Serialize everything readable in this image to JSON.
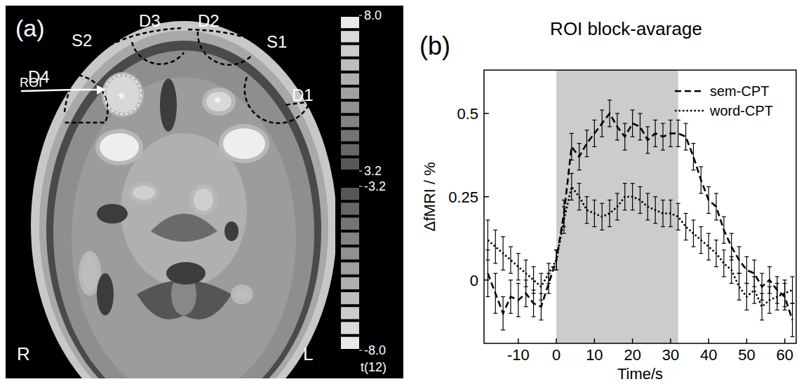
{
  "chart_data": [
    {
      "type": "image",
      "panel": "(a)",
      "labels": [
        "S2",
        "D3",
        "D2",
        "S1",
        "D4",
        "D1",
        "ROI",
        "*",
        "*",
        "R",
        "L"
      ],
      "colorbar": {
        "title": "t(12)",
        "ranges": [
          [
            3.2,
            8.0
          ],
          [
            -8.0,
            -3.2
          ]
        ],
        "ticks": [
          {
            "value": 8.0,
            "label": "8.0"
          },
          {
            "value": 3.2,
            "label": "3.2"
          },
          {
            "value": -3.2,
            "label": "-3.2"
          },
          {
            "value": -8.0,
            "label": "-8.0"
          }
        ]
      }
    },
    {
      "type": "line",
      "panel": "(b)",
      "title": "ROI block-avarage",
      "x_label": "Time/s",
      "y_label": "ΔfMRI / %",
      "xlim": [
        -19,
        63
      ],
      "ylim": [
        -0.19,
        0.63
      ],
      "xticks": [
        -10,
        0,
        10,
        20,
        30,
        40,
        50,
        60
      ],
      "yticks": [
        0,
        0.25,
        0.5
      ],
      "grid": false,
      "legend": "upper right",
      "shaded_x": [
        0,
        32
      ],
      "x": [
        -18,
        -16,
        -14,
        -12,
        -10,
        -8,
        -6,
        -4,
        -2,
        0,
        2,
        4,
        6,
        8,
        10,
        12,
        14,
        16,
        18,
        20,
        22,
        24,
        26,
        28,
        30,
        32,
        34,
        36,
        38,
        40,
        42,
        44,
        46,
        48,
        50,
        52,
        54,
        56,
        58,
        60,
        62
      ],
      "series": [
        {
          "name": "sem-CPT",
          "color": "#000000",
          "line_style": "dashed",
          "values": [
            0.02,
            -0.04,
            -0.1,
            -0.05,
            -0.06,
            -0.04,
            -0.07,
            -0.08,
            -0.01,
            0.06,
            0.2,
            0.4,
            0.37,
            0.41,
            0.44,
            0.47,
            0.5,
            0.46,
            0.43,
            0.47,
            0.46,
            0.42,
            0.44,
            0.43,
            0.44,
            0.44,
            0.43,
            0.37,
            0.3,
            0.24,
            0.22,
            0.15,
            0.1,
            0.06,
            0.03,
            0.02,
            -0.02,
            0.0,
            -0.03,
            -0.05,
            -0.12
          ],
          "errors": [
            0.07,
            0.06,
            0.05,
            0.05,
            0.05,
            0.04,
            0.04,
            0.04,
            0.03,
            0.03,
            0.04,
            0.04,
            0.04,
            0.04,
            0.04,
            0.04,
            0.04,
            0.04,
            0.04,
            0.04,
            0.04,
            0.04,
            0.04,
            0.04,
            0.04,
            0.04,
            0.04,
            0.04,
            0.04,
            0.04,
            0.04,
            0.04,
            0.04,
            0.04,
            0.04,
            0.04,
            0.04,
            0.04,
            0.04,
            0.04,
            0.05
          ]
        },
        {
          "name": "word-CPT",
          "color": "#000000",
          "line_style": "dotted",
          "values": [
            0.12,
            0.1,
            0.08,
            0.06,
            0.04,
            0.02,
            0.0,
            -0.02,
            0.02,
            0.06,
            0.18,
            0.28,
            0.25,
            0.21,
            0.2,
            0.19,
            0.2,
            0.22,
            0.25,
            0.25,
            0.24,
            0.22,
            0.21,
            0.2,
            0.2,
            0.19,
            0.16,
            0.14,
            0.12,
            0.1,
            0.08,
            0.05,
            0.03,
            -0.02,
            -0.05,
            -0.03,
            -0.08,
            -0.06,
            -0.05,
            -0.04,
            -0.03
          ],
          "errors": [
            0.06,
            0.05,
            0.05,
            0.04,
            0.04,
            0.04,
            0.04,
            0.04,
            0.03,
            0.03,
            0.04,
            0.04,
            0.04,
            0.04,
            0.04,
            0.04,
            0.04,
            0.04,
            0.04,
            0.04,
            0.04,
            0.04,
            0.04,
            0.04,
            0.04,
            0.04,
            0.04,
            0.04,
            0.04,
            0.04,
            0.04,
            0.04,
            0.04,
            0.04,
            0.04,
            0.04,
            0.04,
            0.04,
            0.04,
            0.04,
            0.04
          ]
        }
      ]
    }
  ]
}
